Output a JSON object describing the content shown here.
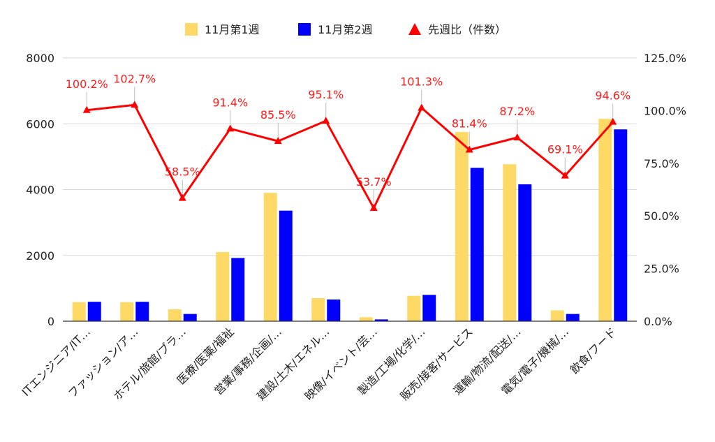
{
  "chart_data": {
    "type": "bar",
    "categories": [
      "ITエンジニア/IT…",
      "ファッション/ア…",
      "ホテル/旅館/ブラ…",
      "医療/医薬/福祉",
      "営業/事務/企画/…",
      "建設/土木/エネル…",
      "映像/イベント/芸…",
      "製造/工場/化学/…",
      "販売/接客/サービス",
      "運輸/物流/配送/…",
      "電気/電子/機械/…",
      "飲食/フード"
    ],
    "series": [
      {
        "name": "11月第1週",
        "type": "bar",
        "axis": "left",
        "color": "#FFD966",
        "values": [
          580,
          580,
          360,
          2100,
          3900,
          700,
          120,
          770,
          5750,
          4770,
          330,
          6150
        ]
      },
      {
        "name": "11月第2週",
        "type": "bar",
        "axis": "left",
        "color": "#0000FF",
        "values": [
          590,
          590,
          220,
          1920,
          3360,
          660,
          55,
          800,
          4660,
          4160,
          220,
          5830
        ]
      },
      {
        "name": "先週比（件数）",
        "type": "line",
        "axis": "right",
        "color": "#FF0000",
        "marker": "triangle",
        "values": [
          100.2,
          102.7,
          58.5,
          91.4,
          85.5,
          95.1,
          53.7,
          101.3,
          81.4,
          87.2,
          69.1,
          94.6
        ],
        "labels": [
          "100.2%",
          "102.7%",
          "58.5%",
          "91.4%",
          "85.5%",
          "95.1%",
          "53.7%",
          "101.3%",
          "81.4%",
          "87.2%",
          "69.1%",
          "94.6%"
        ]
      }
    ],
    "y_left": {
      "min": 0,
      "max": 8000,
      "ticks": [
        "0",
        "2000",
        "4000",
        "6000",
        "8000"
      ]
    },
    "y_right": {
      "min": 0,
      "max": 125,
      "ticks": [
        "0.0%",
        "25.0%",
        "50.0%",
        "75.0%",
        "100.0%",
        "125.0%"
      ]
    },
    "grid": true,
    "legend_position": "top-center"
  }
}
